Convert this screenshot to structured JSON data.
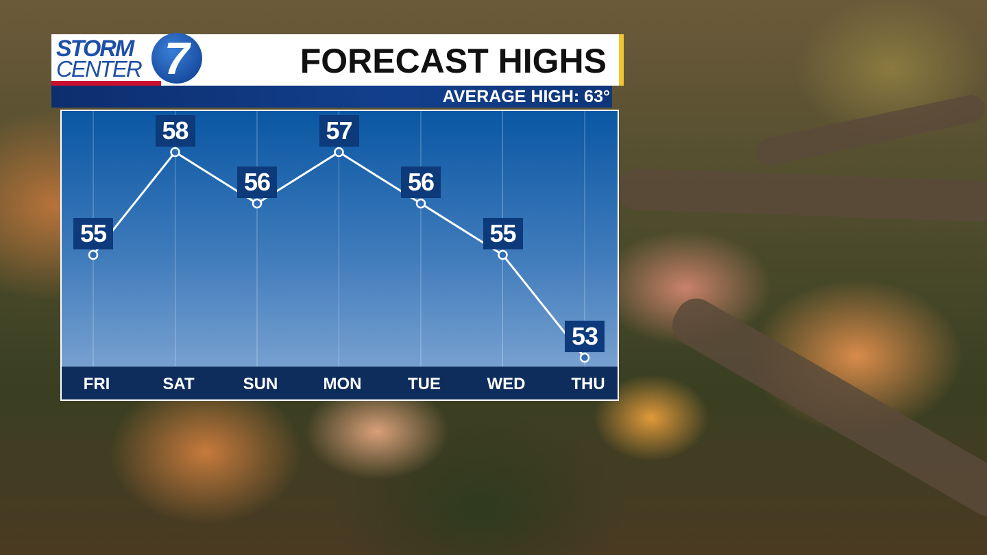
{
  "logo": {
    "line1": "STORM",
    "line2": "CENTER",
    "number": "7"
  },
  "header": {
    "title": "FORECAST HIGHS",
    "subtitle": "AVERAGE HIGH: 63°"
  },
  "colors": {
    "panel_top": "#0a57a3",
    "panel_bottom": "#87abd6",
    "axis_bar": "#0e2d5c",
    "label_box": "#0d3a7a",
    "accent_yellow": "#f2c531",
    "logo_red": "#c8102e"
  },
  "chart_data": {
    "type": "line",
    "title": "FORECAST HIGHS",
    "categories": [
      "FRI",
      "SAT",
      "SUN",
      "MON",
      "TUE",
      "WED",
      "THU"
    ],
    "values": [
      55,
      58,
      56,
      57,
      56,
      55,
      53
    ],
    "data_labels": [
      "55",
      "58",
      "56",
      "57",
      "56",
      "55",
      "53"
    ],
    "grid": "vertical",
    "unit": "°F"
  }
}
